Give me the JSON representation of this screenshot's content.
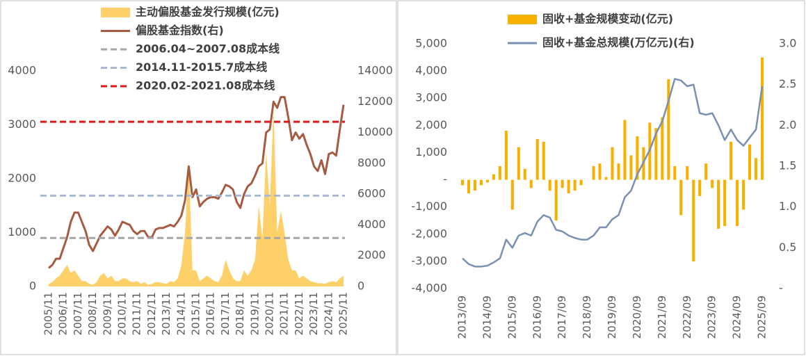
{
  "chart_data": [
    {
      "type": "combo",
      "categories": [
        "2005/11",
        null,
        null,
        null,
        "2006/11",
        null,
        null,
        null,
        "2007/11",
        null,
        null,
        null,
        "2008/11",
        null,
        null,
        null,
        "2009/11",
        null,
        null,
        null,
        "2010/11",
        null,
        null,
        null,
        "2011/11",
        null,
        null,
        null,
        "2012/11",
        null,
        null,
        null,
        "2013/11",
        null,
        null,
        null,
        "2014/11",
        null,
        null,
        null,
        "2015/11",
        null,
        null,
        null,
        "2016/11",
        null,
        null,
        null,
        "2017/11",
        null,
        null,
        null,
        "2018/11",
        null,
        null,
        null,
        "2019/11",
        null,
        null,
        null,
        "2020/11",
        null,
        null,
        null,
        "2021/11",
        null,
        null,
        null,
        "2022/11",
        null,
        null,
        null,
        "2023/11",
        null,
        null,
        null,
        "2024/11",
        null,
        null,
        null,
        "2025/11"
      ],
      "series": [
        {
          "name": "主动偏股基金发行规模(亿元)",
          "type": "area",
          "color": "#fdd06a",
          "values": [
            50,
            80,
            150,
            200,
            300,
            400,
            250,
            300,
            200,
            100,
            100,
            50,
            30,
            80,
            200,
            250,
            150,
            200,
            100,
            100,
            150,
            150,
            100,
            80,
            100,
            50,
            80,
            30,
            50,
            80,
            80,
            60,
            50,
            100,
            80,
            150,
            400,
            1000,
            2300,
            300,
            300,
            100,
            150,
            200,
            150,
            100,
            80,
            200,
            500,
            300,
            150,
            100,
            100,
            300,
            200,
            300,
            500,
            1500,
            900,
            2500,
            1500,
            3300,
            1000,
            1400,
            1000,
            500,
            300,
            300,
            150,
            200,
            150,
            100,
            80,
            60,
            60,
            50,
            80,
            100,
            80,
            150,
            200
          ]
        },
        {
          "name": "偏股基金指数(右)",
          "type": "line",
          "axis": "y2",
          "color": "#a65b40",
          "values": [
            1200,
            1400,
            1800,
            1800,
            2500,
            3200,
            4200,
            4800,
            4800,
            4200,
            3600,
            2700,
            2300,
            2800,
            3300,
            3600,
            3900,
            3700,
            3300,
            3700,
            4200,
            4100,
            4000,
            3600,
            3400,
            3600,
            3600,
            3200,
            3200,
            3700,
            3800,
            3800,
            3900,
            4000,
            3900,
            4200,
            4600,
            5600,
            7800,
            5800,
            6300,
            5200,
            5500,
            5700,
            5800,
            5800,
            5700,
            6100,
            6600,
            6500,
            6300,
            5500,
            5100,
            6000,
            6500,
            6700,
            7200,
            7800,
            8000,
            10000,
            10200,
            12000,
            11600,
            12300,
            12300,
            11000,
            9500,
            10000,
            9600,
            9900,
            9200,
            8600,
            7800,
            7500,
            8200,
            7300,
            8600,
            8700,
            8500,
            10200,
            11800
          ]
        }
      ],
      "reference_lines": [
        {
          "name": "2006.04~2007.08成本线",
          "value": 3150,
          "axis": "y2",
          "color": "#a6a6a6"
        },
        {
          "name": "2014.11-2015.7成本线",
          "value": 5900,
          "axis": "y2",
          "color": "#a9b9cf"
        },
        {
          "name": "2020.02-2021.08成本线",
          "value": 10700,
          "axis": "y2",
          "color": "#e3161b"
        }
      ],
      "ylim": [
        0,
        4000
      ],
      "yticks": [
        0,
        1000,
        2000,
        3000,
        4000
      ],
      "y2lim": [
        0,
        14000
      ],
      "y2ticks": [
        0,
        2000,
        4000,
        6000,
        8000,
        10000,
        12000,
        14000
      ],
      "grid": false
    },
    {
      "type": "combo",
      "categories": [
        "2013/09",
        null,
        null,
        null,
        "2014/09",
        null,
        null,
        null,
        "2015/09",
        null,
        null,
        null,
        "2016/09",
        null,
        null,
        null,
        "2017/09",
        null,
        null,
        null,
        "2018/09",
        null,
        null,
        null,
        "2019/09",
        null,
        null,
        null,
        "2020/09",
        null,
        null,
        null,
        "2021/09",
        null,
        null,
        null,
        "2022/09",
        null,
        null,
        null,
        "2023/09",
        null,
        null,
        null,
        "2024/09",
        null,
        null,
        null,
        "2025/09"
      ],
      "series": [
        {
          "name": "固收+基金规模变动(亿元)",
          "type": "bar",
          "color": "#f5b000",
          "values": [
            -200,
            -500,
            -400,
            -200,
            -100,
            200,
            500,
            1800,
            -1100,
            1200,
            400,
            -300,
            1500,
            1400,
            -400,
            -1500,
            -300,
            -500,
            -400,
            -200,
            0,
            500,
            600,
            100,
            1200,
            600,
            2200,
            900,
            1600,
            1200,
            2100,
            1900,
            2300,
            3700,
            500,
            -1300,
            500,
            -3000,
            -600,
            600,
            -300,
            -1800,
            -1700,
            1400,
            -1700,
            -1100,
            1300,
            800,
            4500
          ]
        },
        {
          "name": "固收+基金总规模(万亿元)(右)",
          "type": "line",
          "axis": "y2",
          "color": "#7890b2",
          "values": [
            0.37,
            0.3,
            0.27,
            0.27,
            0.28,
            0.32,
            0.37,
            0.6,
            0.5,
            0.65,
            0.68,
            0.65,
            0.82,
            0.9,
            0.87,
            0.72,
            0.7,
            0.65,
            0.62,
            0.6,
            0.6,
            0.65,
            0.75,
            0.75,
            0.85,
            0.9,
            1.12,
            1.2,
            1.4,
            1.55,
            1.7,
            1.9,
            2.05,
            2.3,
            2.57,
            2.55,
            2.48,
            2.5,
            2.15,
            2.13,
            2.15,
            2.0,
            1.82,
            1.95,
            1.82,
            1.75,
            1.85,
            1.95,
            2.48
          ]
        }
      ],
      "ylim": [
        -4000,
        5000
      ],
      "yticks": [
        {
          "value": -4000,
          "label": "-4,000"
        },
        {
          "value": -3000,
          "label": "-3,000"
        },
        {
          "value": -2000,
          "label": "-2,000"
        },
        {
          "value": -1000,
          "label": "-1,000"
        },
        {
          "value": 0,
          "label": "-"
        },
        {
          "value": 1000,
          "label": "1,000"
        },
        {
          "value": 2000,
          "label": "2,000"
        },
        {
          "value": 3000,
          "label": "3,000"
        },
        {
          "value": 4000,
          "label": "4,000"
        },
        {
          "value": 5000,
          "label": "5,000"
        }
      ],
      "y2lim": [
        0,
        3
      ],
      "y2ticks": [
        {
          "value": 0,
          "label": "-"
        },
        0.5,
        {
          "value": 1,
          "label": "1.0"
        },
        1.5,
        {
          "value": 2,
          "label": "2.0"
        },
        2.5,
        {
          "value": 3,
          "label": "3.0"
        }
      ],
      "grid": false
    }
  ]
}
